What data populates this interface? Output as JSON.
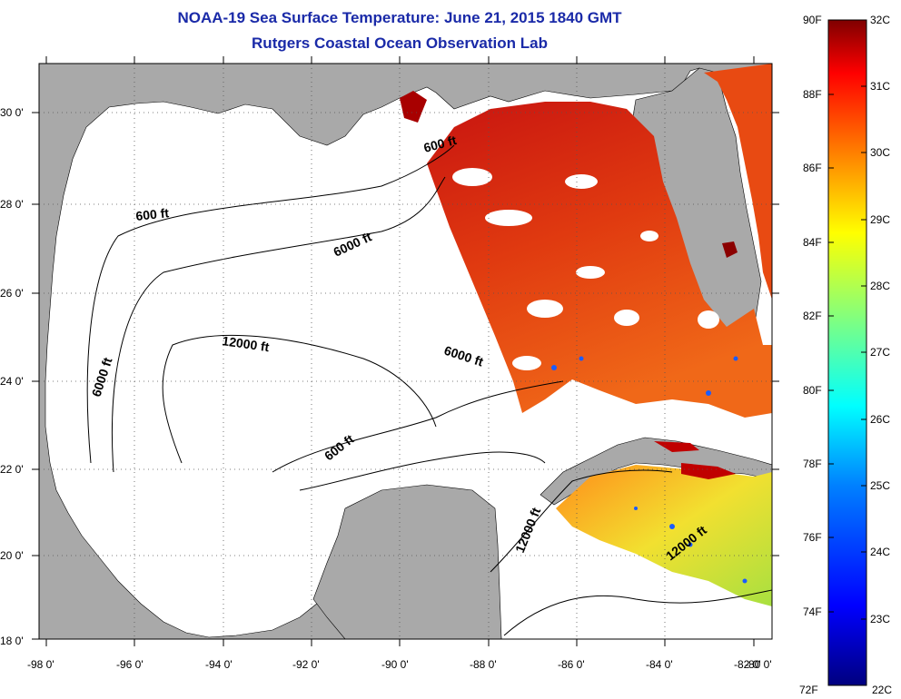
{
  "title": "NOAA-19 Sea Surface Temperature:  June 21, 2015 1840 GMT",
  "subtitle": "Rutgers Coastal Ocean Observation Lab",
  "map": {
    "lon_ticks": [
      "-98 0'",
      "-96 0'",
      "-94 0'",
      "-92 0'",
      "-90 0'",
      "-88 0'",
      "-86 0'",
      "-84 0'",
      "-82 0'",
      "-80 0'"
    ],
    "lat_ticks": [
      "30 0'",
      "28 0'",
      "26 0'",
      "24 0'",
      "22 0'",
      "20 0'",
      "18 0'"
    ],
    "contour_labels": [
      "600 ft",
      "600 ft",
      "6000 ft",
      "6000 ft",
      "6000 ft",
      "12000 ft",
      "600 ft",
      "12000 ft",
      "12000 ft"
    ],
    "colors": {
      "land": "#a9a9a9",
      "no_data": "#ffffff",
      "sst_high": "#8b0000",
      "sst_mid": "#ff4500",
      "sst_low": "#7cfc00"
    }
  },
  "colorbar": {
    "fahrenheit": [
      "90F",
      "88F",
      "86F",
      "84F",
      "82F",
      "80F",
      "78F",
      "76F",
      "74F",
      "72F"
    ],
    "celsius": [
      "32C",
      "31C",
      "30C",
      "29C",
      "28C",
      "27C",
      "26C",
      "25C",
      "24C",
      "23C",
      "22C"
    ],
    "range_celsius": [
      22,
      32
    ],
    "gradient": [
      "#00007f",
      "#0000ff",
      "#0080ff",
      "#00ffff",
      "#80ff80",
      "#ffff00",
      "#ff8000",
      "#ff0000",
      "#7f0000"
    ]
  }
}
